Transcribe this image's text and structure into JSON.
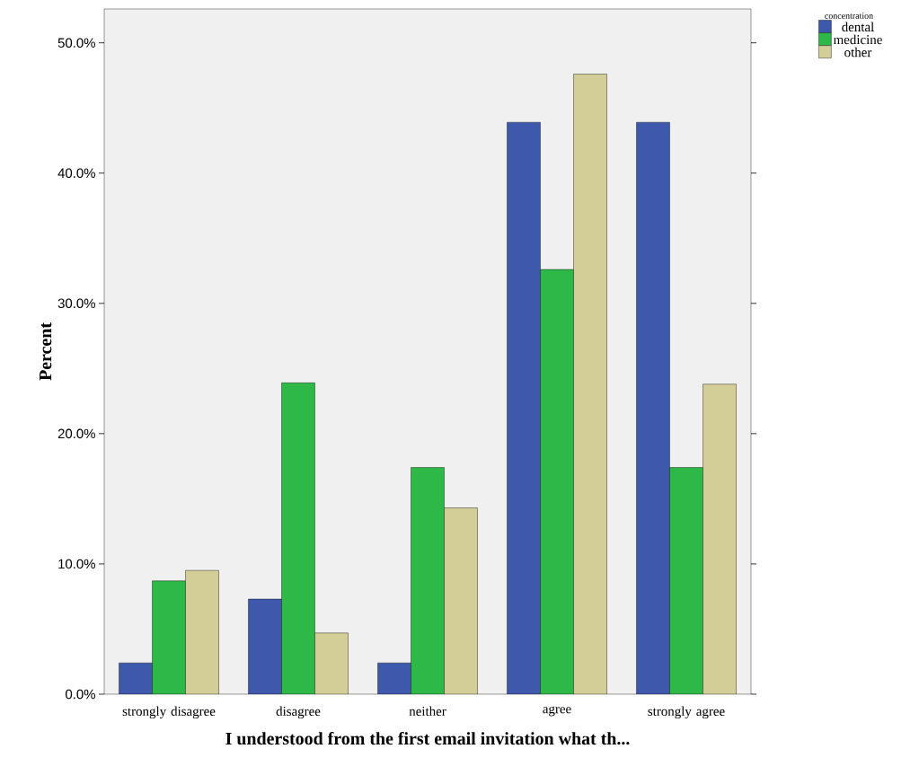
{
  "chart_data": {
    "type": "bar",
    "xlabel": "I understood from the first email invitation what th...",
    "ylabel": "Percent",
    "legend_title": "concentration",
    "categories": [
      "strongly disagree",
      "disagree",
      "neither",
      "agree",
      "strongly agree"
    ],
    "series": [
      {
        "name": "dental",
        "color": "#3e58ac",
        "values": [
          2.4,
          7.3,
          2.4,
          43.9,
          43.9
        ]
      },
      {
        "name": "medicine",
        "color": "#2eb848",
        "values": [
          8.7,
          23.9,
          17.4,
          32.6,
          17.4
        ]
      },
      {
        "name": "other",
        "color": "#d3ce97",
        "values": [
          9.5,
          4.7,
          14.3,
          47.6,
          23.8
        ]
      }
    ],
    "ylim": [
      0,
      52.6
    ],
    "yticks": [
      {
        "value": 0,
        "label": "0.0%"
      },
      {
        "value": 10,
        "label": "10.0%"
      },
      {
        "value": 20,
        "label": "20.0%"
      },
      {
        "value": 30,
        "label": "30.0%"
      },
      {
        "value": 40,
        "label": "40.0%"
      },
      {
        "value": 50,
        "label": "50.0%"
      }
    ],
    "grid": false,
    "legend": "top right"
  }
}
